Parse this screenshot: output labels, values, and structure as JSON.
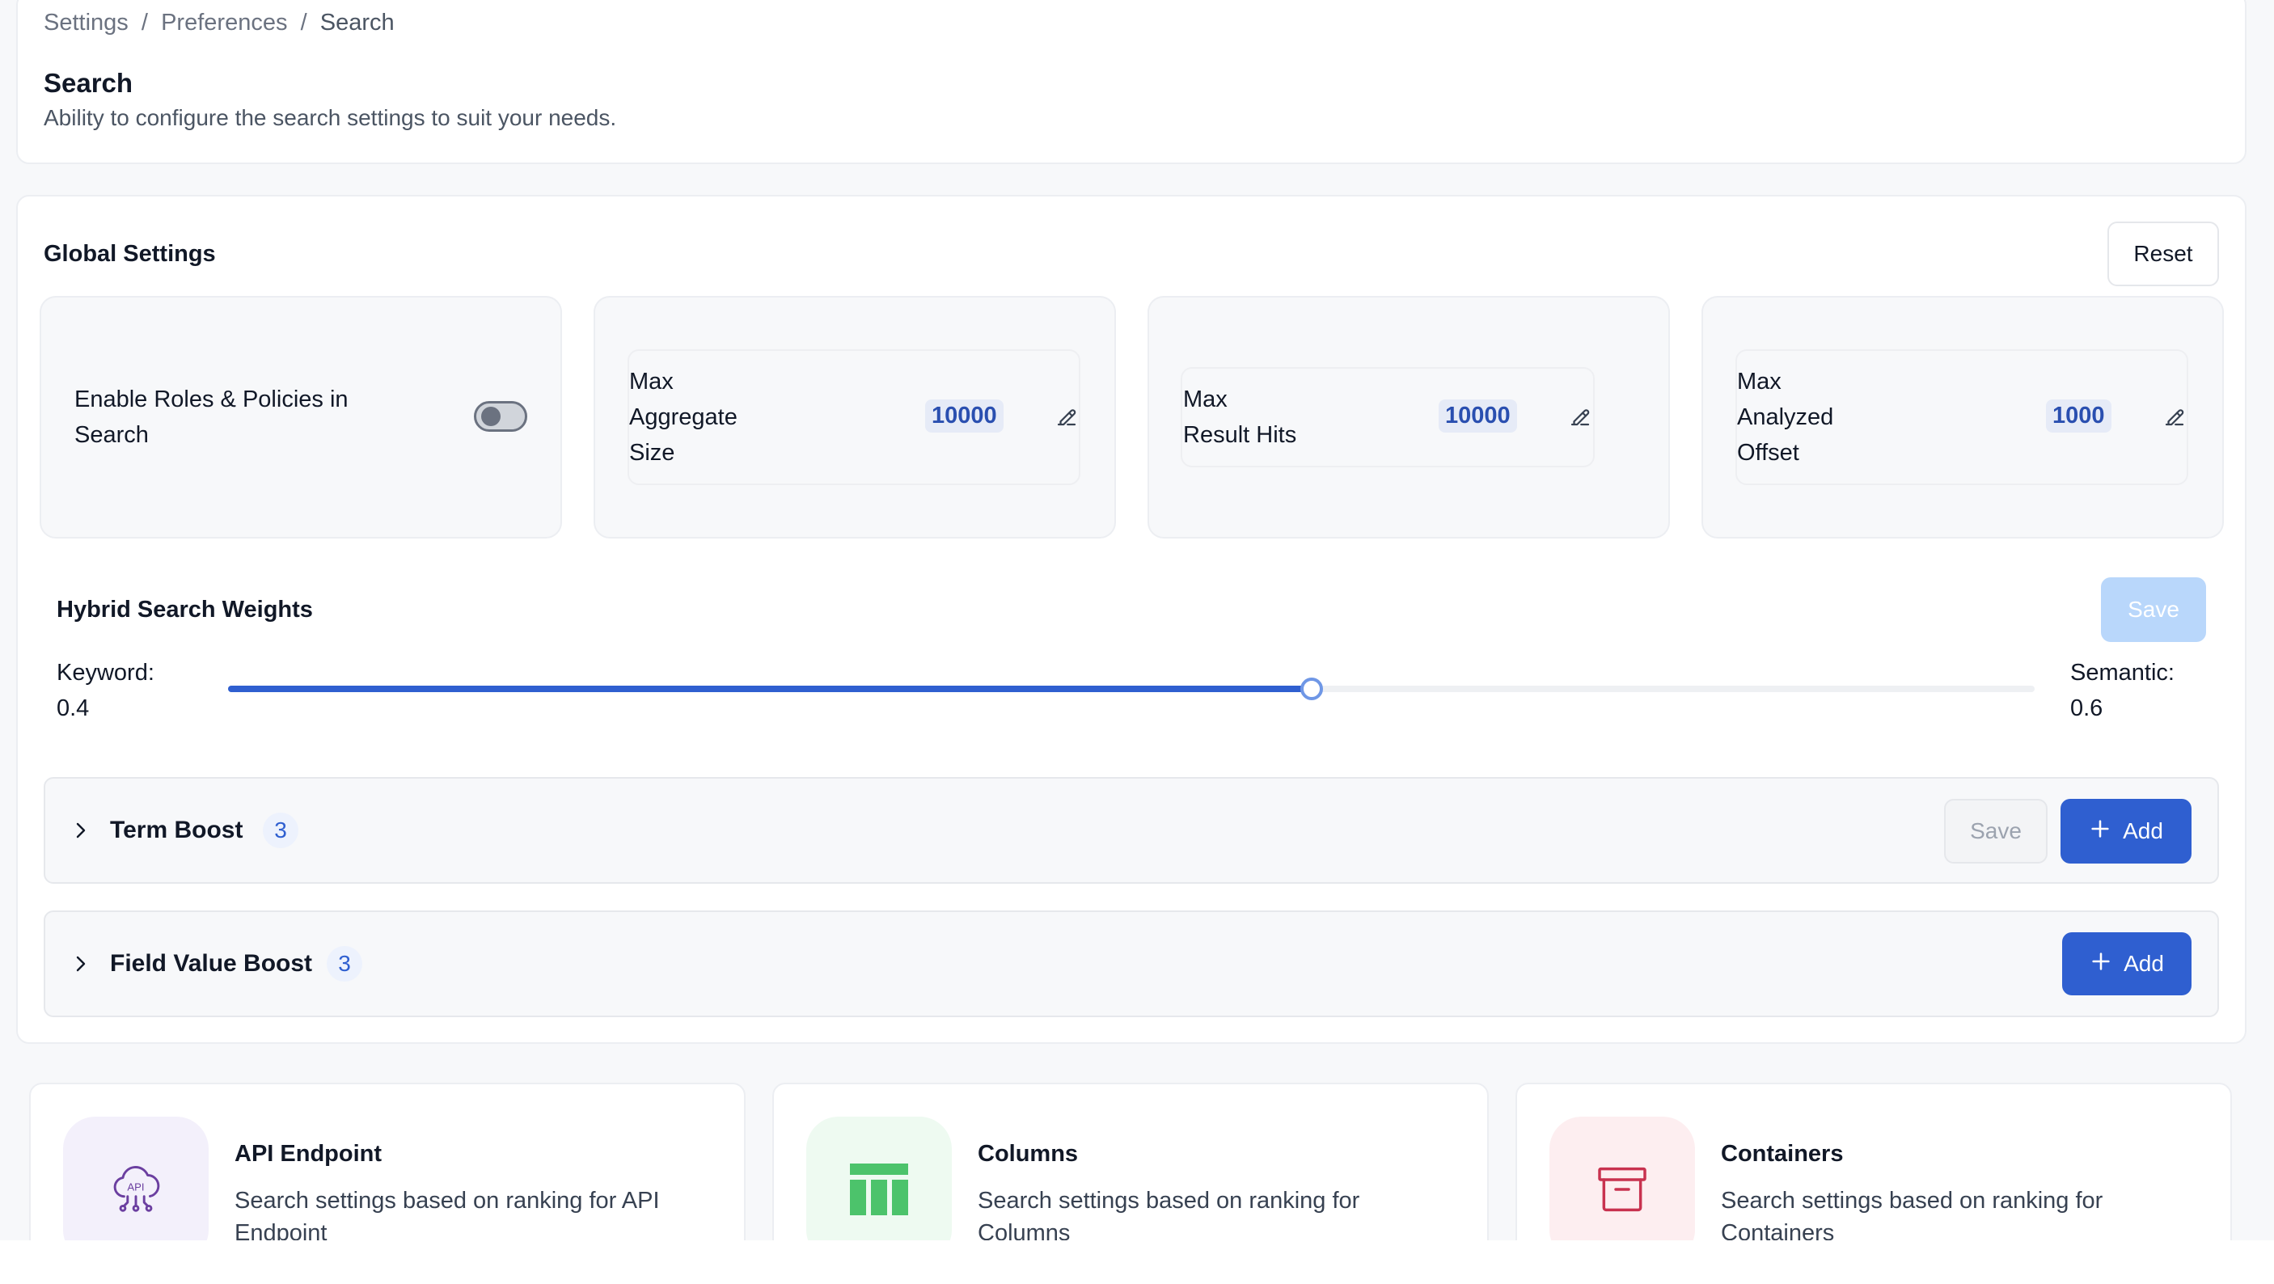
{
  "breadcrumb": {
    "items": [
      "Settings",
      "Preferences",
      "Search"
    ],
    "separator": "/"
  },
  "header": {
    "title": "Search",
    "subtitle": "Ability to configure the search settings to suit your needs."
  },
  "global_settings": {
    "title": "Global Settings",
    "reset_label": "Reset",
    "roles_toggle": {
      "label_line1": "Enable Roles & Policies in",
      "label_line2": "Search",
      "enabled": false
    },
    "max_aggregate_size": {
      "label_lines": [
        "Max",
        "Aggregate",
        "Size"
      ],
      "value": "10000"
    },
    "max_result_hits": {
      "label_lines": [
        "Max",
        "Result Hits"
      ],
      "value": "10000"
    },
    "max_analyzed_offset": {
      "label_lines": [
        "Max",
        "Analyzed",
        "Offset"
      ],
      "value": "1000"
    }
  },
  "hybrid_weights": {
    "title": "Hybrid Search Weights",
    "save_label": "Save",
    "keyword_label": "Keyword:",
    "keyword_value": "0.4",
    "semantic_label": "Semantic:",
    "semantic_value": "0.6",
    "slider_fraction": 0.6
  },
  "term_boost": {
    "title": "Term Boost",
    "count": "3",
    "save_label": "Save",
    "add_label": "Add"
  },
  "field_value_boost": {
    "title": "Field Value Boost",
    "count": "3",
    "add_label": "Add"
  },
  "entity_cards": [
    {
      "title": "API Endpoint",
      "desc_line1": "Search settings based on ranking for API",
      "desc_line2": "Endpoint",
      "icon": "api-cloud-icon",
      "icon_label": "API",
      "bg": "#f3f0fb",
      "color": "#6b3fa0"
    },
    {
      "title": "Columns",
      "desc_line1": "Search settings based on ranking for",
      "desc_line2": "Columns",
      "icon": "columns-icon",
      "bg": "#eefaf1",
      "color": "#4cc36b"
    },
    {
      "title": "Containers",
      "desc_line1": "Search settings based on ranking for",
      "desc_line2": "Containers",
      "icon": "container-box-icon",
      "bg": "#fdeef0",
      "color": "#c8324f"
    }
  ],
  "colors": {
    "primary": "#2f5fd0",
    "primary_disabled": "#b9d7fb",
    "chip_bg": "#e6ebf7",
    "chip_text": "#2a4fb0"
  }
}
